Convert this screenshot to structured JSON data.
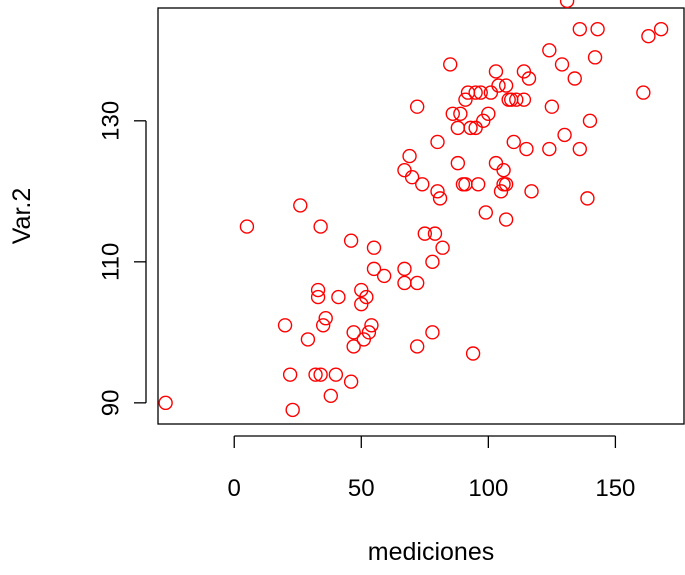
{
  "chart_data": {
    "type": "scatter",
    "xlabel": "mediciones",
    "ylabel": "Var.2",
    "xlim": [
      -30,
      177
    ],
    "ylim": [
      87,
      146
    ],
    "xticks": [
      0,
      50,
      100,
      150
    ],
    "yticks": [
      90,
      110,
      130
    ],
    "grid": false,
    "marker": "open-circle",
    "color": "#ff0000",
    "series": [
      {
        "points": [
          [
            -27,
            90
          ],
          [
            5,
            115
          ],
          [
            20,
            101
          ],
          [
            22,
            94
          ],
          [
            23,
            89
          ],
          [
            26,
            118
          ],
          [
            29,
            99
          ],
          [
            32,
            94
          ],
          [
            33,
            106
          ],
          [
            33,
            105
          ],
          [
            34,
            94
          ],
          [
            34,
            115
          ],
          [
            35,
            101
          ],
          [
            36,
            102
          ],
          [
            38,
            91
          ],
          [
            40,
            94
          ],
          [
            41,
            105
          ],
          [
            46,
            93
          ],
          [
            46,
            113
          ],
          [
            47,
            98
          ],
          [
            47,
            100
          ],
          [
            50,
            104
          ],
          [
            50,
            106
          ],
          [
            51,
            99
          ],
          [
            52,
            105
          ],
          [
            53,
            100
          ],
          [
            54,
            101
          ],
          [
            55,
            112
          ],
          [
            55,
            109
          ],
          [
            59,
            108
          ],
          [
            67,
            107
          ],
          [
            67,
            109
          ],
          [
            67,
            123
          ],
          [
            69,
            125
          ],
          [
            70,
            122
          ],
          [
            72,
            98
          ],
          [
            72,
            107
          ],
          [
            72,
            132
          ],
          [
            74,
            121
          ],
          [
            75,
            114
          ],
          [
            78,
            100
          ],
          [
            78,
            110
          ],
          [
            79,
            114
          ],
          [
            80,
            127
          ],
          [
            80,
            120
          ],
          [
            81,
            119
          ],
          [
            82,
            112
          ],
          [
            85,
            138
          ],
          [
            86,
            131
          ],
          [
            88,
            124
          ],
          [
            88,
            129
          ],
          [
            89,
            131
          ],
          [
            90,
            121
          ],
          [
            91,
            121
          ],
          [
            91,
            133
          ],
          [
            92,
            134
          ],
          [
            93,
            129
          ],
          [
            94,
            97
          ],
          [
            95,
            134
          ],
          [
            95,
            129
          ],
          [
            96,
            121
          ],
          [
            97,
            134
          ],
          [
            98,
            130
          ],
          [
            99,
            117
          ],
          [
            100,
            131
          ],
          [
            101,
            134
          ],
          [
            103,
            124
          ],
          [
            103,
            137
          ],
          [
            104,
            135
          ],
          [
            105,
            120
          ],
          [
            106,
            121
          ],
          [
            106,
            123
          ],
          [
            107,
            121
          ],
          [
            107,
            116
          ],
          [
            107,
            135
          ],
          [
            108,
            133
          ],
          [
            109,
            133
          ],
          [
            110,
            127
          ],
          [
            111,
            133
          ],
          [
            114,
            133
          ],
          [
            114,
            137
          ],
          [
            115,
            126
          ],
          [
            116,
            136
          ],
          [
            117,
            120
          ],
          [
            124,
            126
          ],
          [
            124,
            140
          ],
          [
            125,
            132
          ],
          [
            129,
            138
          ],
          [
            130,
            128
          ],
          [
            131,
            147
          ],
          [
            134,
            136
          ],
          [
            136,
            143
          ],
          [
            136,
            126
          ],
          [
            139,
            119
          ],
          [
            140,
            130
          ],
          [
            142,
            139
          ],
          [
            143,
            143
          ],
          [
            161,
            134
          ],
          [
            163,
            142
          ],
          [
            168,
            143
          ]
        ]
      }
    ]
  }
}
